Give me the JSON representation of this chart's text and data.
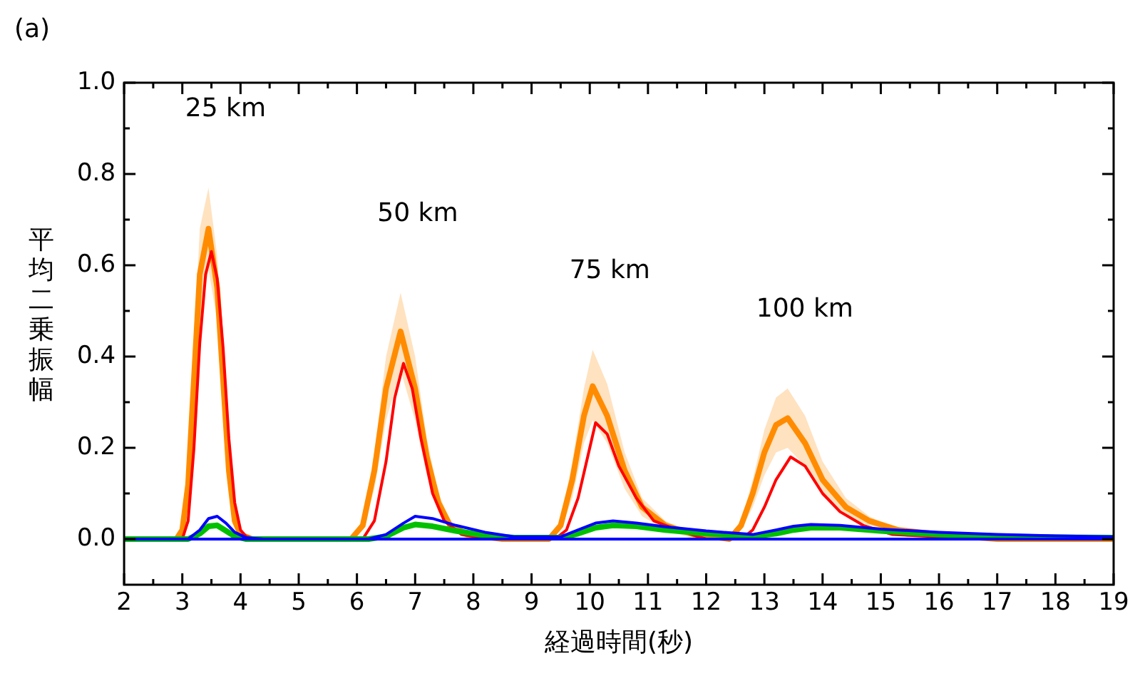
{
  "chart_data": {
    "type": "line",
    "title": "(a)",
    "xlabel": "経過時間(秒)",
    "ylabel": "平均二乗振幅",
    "xlim": [
      2,
      19
    ],
    "ylim": [
      -0.1,
      1.0
    ],
    "xticks": [
      2,
      {
        "value": 2.5,
        "label": null
      },
      3,
      {
        "value": 3.5,
        "label": null
      },
      4,
      {
        "value": 4.5,
        "label": null
      },
      5,
      {
        "value": 5.5,
        "label": null
      },
      6,
      {
        "value": 6.5,
        "label": null
      },
      7,
      {
        "value": 7.5,
        "label": null
      },
      8,
      {
        "value": 8.5,
        "label": null
      },
      9,
      {
        "value": 9.5,
        "label": null
      },
      10,
      {
        "value": 10.5,
        "label": null
      },
      11,
      {
        "value": 11.5,
        "label": null
      },
      12,
      {
        "value": 12.5,
        "label": null
      },
      13,
      {
        "value": 13.5,
        "label": null
      },
      14,
      {
        "value": 14.5,
        "label": null
      },
      15,
      {
        "value": 15.5,
        "label": null
      },
      16,
      {
        "value": 16.5,
        "label": null
      },
      17,
      {
        "value": 17.5,
        "label": null
      },
      18,
      {
        "value": 18.5,
        "label": null
      },
      19
    ],
    "yticks": [
      {
        "value": 0,
        "label": "0.0"
      },
      {
        "value": 0.1,
        "label": null
      },
      {
        "value": 0.2,
        "label": "0.2"
      },
      {
        "value": 0.3,
        "label": null
      },
      {
        "value": 0.4,
        "label": "0.4"
      },
      {
        "value": 0.5,
        "label": null
      },
      {
        "value": 0.6,
        "label": "0.6"
      },
      {
        "value": 0.7,
        "label": null
      },
      {
        "value": 0.8,
        "label": "0.8"
      },
      {
        "value": 0.9,
        "label": null
      },
      {
        "value": 1.0,
        "label": "1.0"
      }
    ],
    "grid": false,
    "legend": false,
    "marker": "none",
    "line_style": "solid",
    "annotations": [
      "25 km",
      "50 km",
      "75 km",
      "100 km"
    ],
    "series": [
      {
        "color": "#ff8c00",
        "x": [
          2,
          2.9,
          3.0,
          3.1,
          3.2,
          3.3,
          3.45,
          3.6,
          3.7,
          3.8,
          3.9,
          4.0,
          4.2,
          5.9,
          6.1,
          6.3,
          6.5,
          6.75,
          7.0,
          7.2,
          7.4,
          7.6,
          7.9,
          8.5,
          9.3,
          9.5,
          9.7,
          9.9,
          10.05,
          10.3,
          10.6,
          10.9,
          11.3,
          11.8,
          12.4,
          12.6,
          12.8,
          13.0,
          13.2,
          13.4,
          13.7,
          14.0,
          14.4,
          14.8,
          15.3,
          16,
          17,
          19
        ],
        "values": [
          0,
          0,
          0.02,
          0.12,
          0.35,
          0.58,
          0.68,
          0.55,
          0.35,
          0.15,
          0.04,
          0.01,
          0,
          0,
          0.03,
          0.15,
          0.33,
          0.455,
          0.33,
          0.18,
          0.08,
          0.03,
          0.01,
          0,
          0,
          0.03,
          0.13,
          0.27,
          0.335,
          0.27,
          0.15,
          0.07,
          0.03,
          0.01,
          0,
          0.03,
          0.1,
          0.19,
          0.25,
          0.265,
          0.21,
          0.13,
          0.07,
          0.04,
          0.02,
          0.01,
          0,
          0
        ],
        "upper": [
          0,
          0,
          0.03,
          0.15,
          0.42,
          0.68,
          0.77,
          0.62,
          0.4,
          0.18,
          0.05,
          0.01,
          0,
          0,
          0.04,
          0.19,
          0.4,
          0.54,
          0.4,
          0.22,
          0.1,
          0.04,
          0.01,
          0,
          0,
          0.04,
          0.17,
          0.33,
          0.415,
          0.34,
          0.19,
          0.09,
          0.04,
          0.01,
          0,
          0.04,
          0.13,
          0.24,
          0.31,
          0.33,
          0.27,
          0.17,
          0.09,
          0.05,
          0.02,
          0.01,
          0,
          0
        ],
        "lower": [
          0,
          0,
          0.01,
          0.09,
          0.28,
          0.48,
          0.59,
          0.48,
          0.3,
          0.12,
          0.03,
          0,
          0,
          0,
          0.02,
          0.11,
          0.26,
          0.37,
          0.26,
          0.14,
          0.06,
          0.02,
          0,
          0,
          0,
          0.02,
          0.09,
          0.21,
          0.26,
          0.21,
          0.11,
          0.05,
          0.02,
          0,
          0,
          0.02,
          0.07,
          0.14,
          0.19,
          0.2,
          0.16,
          0.1,
          0.05,
          0.03,
          0.01,
          0,
          0,
          0
        ]
      },
      {
        "color": "#ff0000",
        "x": [
          2,
          3.0,
          3.1,
          3.2,
          3.3,
          3.4,
          3.5,
          3.6,
          3.7,
          3.8,
          3.9,
          4.0,
          4.1,
          4.3,
          6.1,
          6.3,
          6.5,
          6.65,
          6.8,
          6.95,
          7.1,
          7.3,
          7.5,
          7.8,
          8.3,
          9.4,
          9.6,
          9.8,
          10.0,
          10.1,
          10.3,
          10.5,
          10.8,
          11.1,
          11.5,
          12.0,
          12.6,
          12.8,
          13.0,
          13.2,
          13.45,
          13.7,
          14.0,
          14.3,
          14.7,
          15.2,
          16,
          19
        ],
        "values": [
          0,
          0,
          0.04,
          0.2,
          0.43,
          0.58,
          0.63,
          0.57,
          0.42,
          0.22,
          0.08,
          0.02,
          0.005,
          0,
          0,
          0.04,
          0.17,
          0.31,
          0.385,
          0.33,
          0.22,
          0.1,
          0.04,
          0.01,
          0,
          0,
          0.02,
          0.09,
          0.2,
          0.255,
          0.23,
          0.16,
          0.09,
          0.04,
          0.02,
          0,
          0,
          0.02,
          0.07,
          0.13,
          0.18,
          0.16,
          0.1,
          0.06,
          0.03,
          0.01,
          0.005,
          0
        ]
      },
      {
        "color": "#00c000",
        "x": [
          2,
          3.1,
          3.3,
          3.45,
          3.6,
          3.75,
          3.9,
          4.1,
          4.4,
          6.2,
          6.5,
          6.8,
          7.0,
          7.3,
          7.7,
          8.2,
          8.7,
          9.5,
          9.8,
          10.1,
          10.4,
          10.8,
          11.3,
          12.0,
          12.8,
          13.2,
          13.5,
          13.8,
          14.3,
          15,
          16,
          17,
          18,
          19
        ],
        "values": [
          0,
          0,
          0.012,
          0.028,
          0.03,
          0.018,
          0.006,
          0,
          0,
          0,
          0.006,
          0.025,
          0.032,
          0.028,
          0.018,
          0.008,
          0.003,
          0.003,
          0.012,
          0.025,
          0.03,
          0.028,
          0.02,
          0.012,
          0.006,
          0.012,
          0.02,
          0.025,
          0.025,
          0.018,
          0.01,
          0.006,
          0.004,
          0.003
        ]
      },
      {
        "color": "#0000ff",
        "x": [
          2,
          3.1,
          3.3,
          3.45,
          3.6,
          3.75,
          3.9,
          4.1,
          4.4,
          6.2,
          6.5,
          6.8,
          7.0,
          7.3,
          7.7,
          8.2,
          8.7,
          9.5,
          9.8,
          10.1,
          10.4,
          10.8,
          11.3,
          12.0,
          12.8,
          13.2,
          13.5,
          13.8,
          14.3,
          15,
          16,
          17,
          18,
          19
        ],
        "values": [
          0,
          0,
          0.02,
          0.045,
          0.05,
          0.035,
          0.015,
          0.003,
          0,
          0,
          0.01,
          0.035,
          0.05,
          0.045,
          0.03,
          0.015,
          0.005,
          0.005,
          0.02,
          0.035,
          0.04,
          0.035,
          0.027,
          0.018,
          0.01,
          0.02,
          0.028,
          0.032,
          0.03,
          0.022,
          0.015,
          0.01,
          0.007,
          0.005
        ]
      },
      {
        "color": "#0000ff",
        "x": [
          2,
          19
        ],
        "values": [
          0,
          0
        ]
      }
    ]
  }
}
